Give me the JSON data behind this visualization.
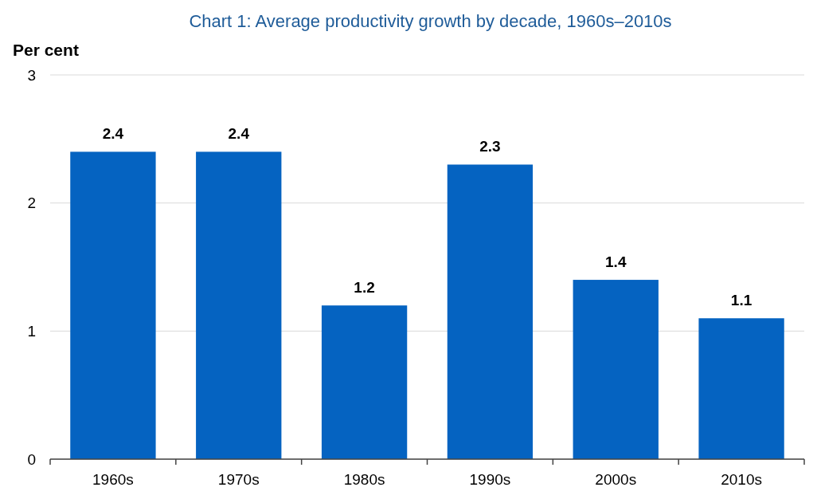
{
  "chart_data": {
    "type": "bar",
    "title": "Chart 1: Average productivity growth by decade, 1960s–2010s",
    "ylabel": "Per cent",
    "categories": [
      "1960s",
      "1970s",
      "1980s",
      "1990s",
      "2000s",
      "2010s"
    ],
    "values": [
      2.4,
      2.4,
      1.2,
      2.3,
      1.4,
      1.1
    ],
    "color": "#0563c1",
    "ylim": [
      0,
      3
    ],
    "yticks": [
      0,
      1,
      2,
      3
    ],
    "grid": "y",
    "data_labels": true
  }
}
